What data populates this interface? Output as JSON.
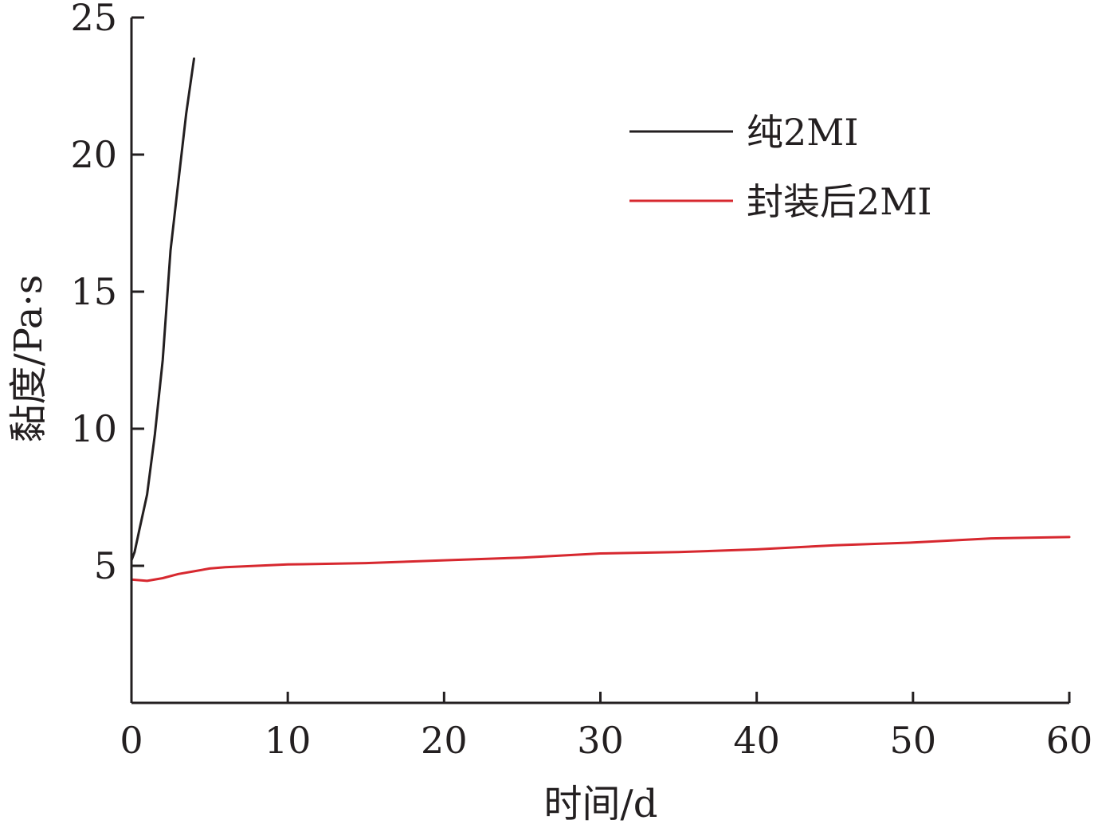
{
  "chart_data": {
    "type": "line",
    "title": "",
    "xlabel": "时间/d",
    "ylabel": "黏度/Pa·s",
    "xlim": [
      0,
      60
    ],
    "ylim": [
      0,
      25
    ],
    "xticks": [
      "0",
      "10",
      "20",
      "30",
      "40",
      "50",
      "60"
    ],
    "yticks": [
      "5",
      "10",
      "15",
      "20",
      "25"
    ],
    "grid": false,
    "legend_position": "top-right",
    "series": [
      {
        "name": "纯2MI",
        "color": "#231f20",
        "x": [
          0,
          0.2,
          0.5,
          1.0,
          1.5,
          2.0,
          2.5,
          3.0,
          3.5,
          4.0
        ],
        "y": [
          5.2,
          5.5,
          6.3,
          7.6,
          9.8,
          12.5,
          16.5,
          19.0,
          21.5,
          23.5
        ]
      },
      {
        "name": "封装后2MI",
        "color": "#d7282f",
        "x": [
          0,
          1,
          2,
          3,
          4,
          5,
          6,
          8,
          10,
          15,
          20,
          25,
          30,
          35,
          40,
          45,
          50,
          55,
          60
        ],
        "y": [
          4.5,
          4.45,
          4.55,
          4.7,
          4.8,
          4.9,
          4.95,
          5.0,
          5.05,
          5.1,
          5.2,
          5.3,
          5.45,
          5.5,
          5.6,
          5.75,
          5.85,
          6.0,
          6.05
        ]
      }
    ]
  }
}
